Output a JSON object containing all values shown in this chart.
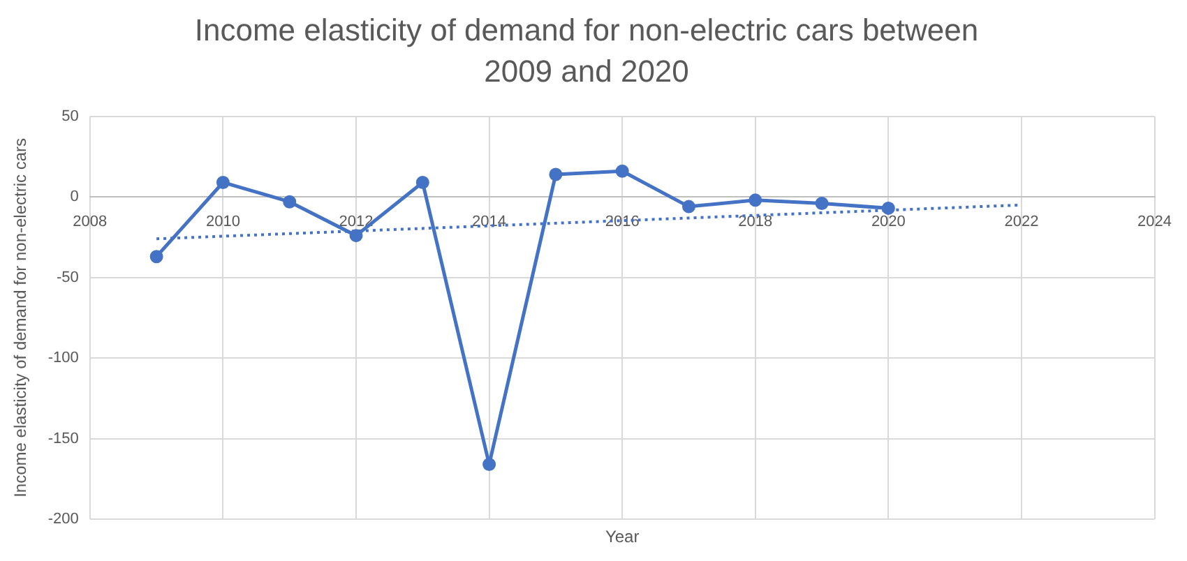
{
  "chart_data": {
    "type": "line",
    "title": "Income elasticity of demand for non-electric cars between 2009 and 2020",
    "xlabel": "Year",
    "ylabel": "Income elasticity of demand for non-electric cars",
    "x": [
      2009,
      2010,
      2011,
      2012,
      2013,
      2014,
      2015,
      2016,
      2017,
      2018,
      2019,
      2020
    ],
    "series": [
      {
        "color": "#4472c4",
        "values": [
          -37,
          9,
          -3,
          -24,
          9,
          -166,
          14,
          16,
          -6,
          -2,
          -4,
          -7
        ],
        "marker": "circle",
        "line_style": "solid"
      },
      {
        "type": "line",
        "color": "#4472c4",
        "x": [
          2009,
          2022
        ],
        "values": [
          -26,
          -5
        ],
        "marker": "none",
        "line_style": "dotted"
      }
    ],
    "xlim": [
      2008,
      2024
    ],
    "xticks": [
      2008,
      2010,
      2012,
      2014,
      2016,
      2018,
      2020,
      2022,
      2024
    ],
    "ylim": [
      -200,
      50
    ],
    "yticks": [
      -200,
      -150,
      -100,
      -50,
      0,
      50
    ],
    "grid": true,
    "legend": false
  }
}
